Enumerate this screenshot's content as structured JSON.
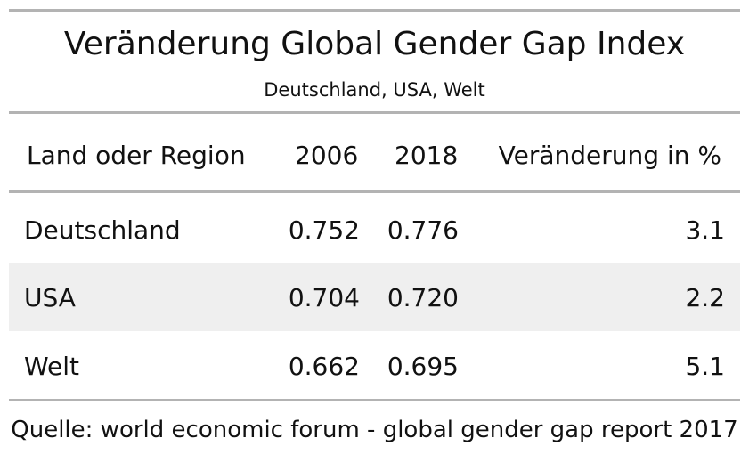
{
  "chart_data": {
    "type": "table",
    "title": "Veränderung Global Gender Gap Index",
    "subtitle": "Deutschland, USA, Welt",
    "columns": [
      "Land oder Region",
      "2006",
      "2018",
      "Veränderung in %"
    ],
    "rows": [
      {
        "region": "Deutschland",
        "v2006": "0.752",
        "v2018": "0.776",
        "change": "3.1"
      },
      {
        "region": "USA",
        "v2006": "0.704",
        "v2018": "0.720",
        "change": "2.2"
      },
      {
        "region": "Welt",
        "v2006": "0.662",
        "v2018": "0.695",
        "change": "5.1"
      }
    ],
    "source": "Quelle: world economic forum - global gender gap report 2017",
    "striped_row_color": "#efefef",
    "rule_color": "#b3b3b3"
  }
}
